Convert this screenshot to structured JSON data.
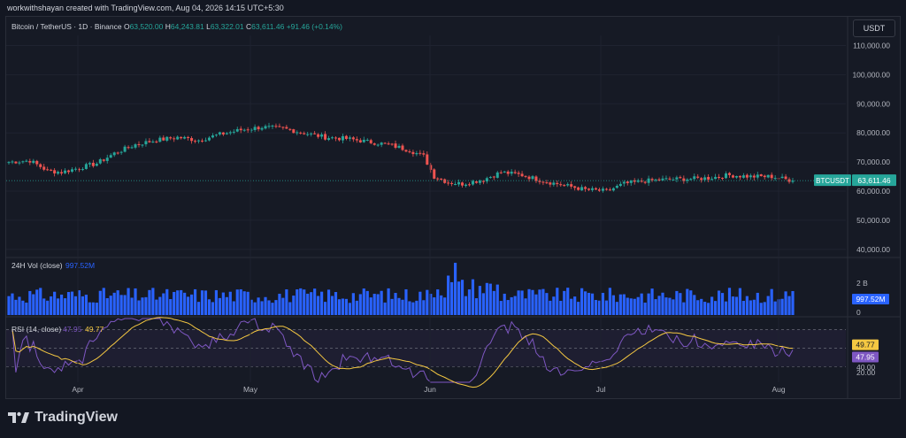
{
  "header": {
    "created_by": "workwithshayan created with TradingView.com, Aug 04, 2026 14:15 UTC+5:30"
  },
  "symbol": {
    "title": "Bitcoin / TetherUS · 1D · Binance",
    "open_label": "O",
    "open": "63,520.00",
    "high_label": "H",
    "high": "64,243.81",
    "low_label": "L",
    "low": "63,322.01",
    "close_label": "C",
    "close": "63,611.46",
    "change": "+91.46 (+0.14%)",
    "currency": "USDT",
    "ticker_tag": "BTCUSDT",
    "last_price": "63,611.46"
  },
  "volume_pane": {
    "label": "24H Vol (close)",
    "value": "997.52M",
    "axis_labels": [
      "2 B",
      "0"
    ],
    "tag": "997.52M"
  },
  "rsi_pane": {
    "label": "RSI (14, close)",
    "value1": "47.95",
    "value2": "49.77",
    "tag_ma": "49.77",
    "tag_rsi": "47.95",
    "axis_labels": [
      "40.00",
      "20.00"
    ]
  },
  "time_axis": [
    "Apr",
    "May",
    "Jun",
    "Jul",
    "Aug"
  ],
  "colors": {
    "up": "#26a69a",
    "down": "#ef5350",
    "volume": "#2962ff",
    "rsi": "#7e57c2",
    "rsi_ma": "#f5c842",
    "last_tag": "#26a69a"
  },
  "footer": {
    "brand": "TradingView"
  },
  "chart_data": {
    "type": "candlestick",
    "price_axis": [
      "110,000.00",
      "100,000.00",
      "90,000.00",
      "80,000.00",
      "70,000.00",
      "60,000.00",
      "50,000.00",
      "40,000.00"
    ],
    "ylim": [
      37500,
      113500
    ],
    "close_anchors": [
      [
        0,
        70000
      ],
      [
        6,
        70500
      ],
      [
        11,
        67000
      ],
      [
        15,
        66500
      ],
      [
        20,
        68000
      ],
      [
        25,
        69500
      ],
      [
        30,
        73000
      ],
      [
        36,
        76000
      ],
      [
        42,
        77500
      ],
      [
        48,
        78500
      ],
      [
        54,
        77500
      ],
      [
        60,
        79500
      ],
      [
        66,
        81000
      ],
      [
        72,
        82000
      ],
      [
        78,
        81500
      ],
      [
        84,
        80000
      ],
      [
        90,
        78500
      ],
      [
        96,
        78000
      ],
      [
        102,
        77000
      ],
      [
        108,
        76000
      ],
      [
        114,
        74000
      ],
      [
        118,
        72000
      ],
      [
        121,
        65000
      ],
      [
        125,
        63000
      ],
      [
        129,
        62500
      ],
      [
        135,
        64000
      ],
      [
        140,
        66500
      ],
      [
        146,
        65500
      ],
      [
        152,
        63500
      ],
      [
        158,
        62000
      ],
      [
        164,
        60500
      ],
      [
        170,
        60000
      ],
      [
        175,
        62500
      ],
      [
        181,
        63500
      ],
      [
        187,
        64000
      ],
      [
        193,
        64200
      ],
      [
        199,
        64500
      ],
      [
        205,
        65500
      ],
      [
        211,
        65000
      ],
      [
        217,
        65000
      ],
      [
        223,
        63611
      ]
    ],
    "candles_count": 224,
    "volume_max": 3100000000,
    "rsi_range": [
      13,
      82
    ],
    "rsi_ma_last": 49.77,
    "rsi_last": 47.95
  }
}
